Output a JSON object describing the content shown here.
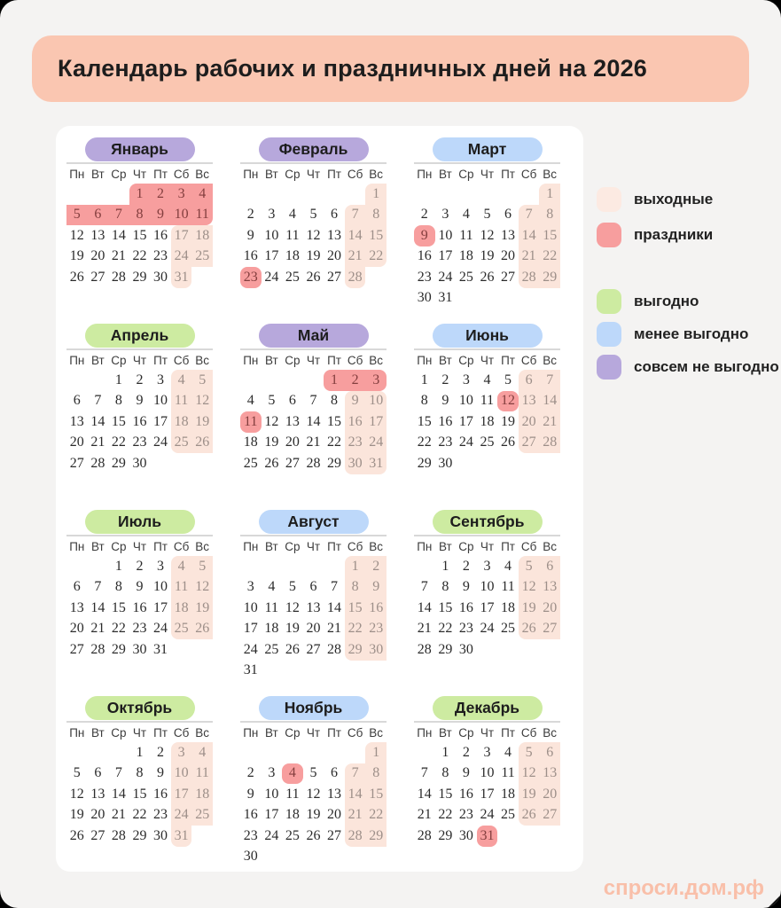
{
  "page": {
    "title": "Календарь рабочих и праздничных дней на 2026",
    "watermark": "спроси.дом.рф"
  },
  "colors": {
    "background": "#F4F3F2",
    "title_banner": "#FAC6B1",
    "card": "#FFFFFF",
    "weekend_bg": "#FBE5DB",
    "weekend_text": "#9D8F89",
    "holiday_bg": "#F79E9E",
    "holiday_text": "#833E3E",
    "green": "#CDEBA1",
    "blue": "#BDD8FA",
    "purple": "#B7A8DC",
    "watermark": "#F9BFA9"
  },
  "weekday_labels": [
    "Пн",
    "Вт",
    "Ср",
    "Чт",
    "Пт",
    "Сб",
    "Вс"
  ],
  "months": [
    {
      "name": "Январь",
      "color": "purple",
      "start": 3,
      "days": 31,
      "holidays": [
        1,
        2,
        3,
        4,
        5,
        6,
        7,
        8,
        9,
        10,
        11
      ]
    },
    {
      "name": "Февраль",
      "color": "purple",
      "start": 6,
      "days": 28,
      "holidays": [
        23
      ]
    },
    {
      "name": "Март",
      "color": "blue",
      "start": 6,
      "days": 31,
      "holidays": [
        9
      ]
    },
    {
      "name": "Апрель",
      "color": "green",
      "start": 2,
      "days": 30,
      "holidays": []
    },
    {
      "name": "Май",
      "color": "purple",
      "start": 4,
      "days": 31,
      "holidays": [
        1,
        2,
        3,
        11
      ]
    },
    {
      "name": "Июнь",
      "color": "blue",
      "start": 0,
      "days": 30,
      "holidays": [
        12
      ]
    },
    {
      "name": "Июль",
      "color": "green",
      "start": 2,
      "days": 31,
      "holidays": []
    },
    {
      "name": "Август",
      "color": "blue",
      "start": 5,
      "days": 31,
      "holidays": []
    },
    {
      "name": "Сентябрь",
      "color": "green",
      "start": 1,
      "days": 30,
      "holidays": []
    },
    {
      "name": "Октябрь",
      "color": "green",
      "start": 3,
      "days": 31,
      "holidays": []
    },
    {
      "name": "Ноябрь",
      "color": "blue",
      "start": 6,
      "days": 30,
      "holidays": [
        4
      ]
    },
    {
      "name": "Декабрь",
      "color": "green",
      "start": 1,
      "days": 31,
      "holidays": [
        31
      ]
    }
  ],
  "legend": {
    "groups": [
      [
        {
          "label": "выходные",
          "color_key": "weekend_bg_light",
          "color": "#FCEAE2"
        },
        {
          "label": "праздники",
          "color": "#F79E9E"
        }
      ],
      [
        {
          "label": "выгодно",
          "color": "#CDEBA1"
        },
        {
          "label": "менее выгодно",
          "color": "#BDD8FA"
        },
        {
          "label": "совсем не выгодно",
          "color": "#B7A8DC"
        }
      ]
    ]
  }
}
